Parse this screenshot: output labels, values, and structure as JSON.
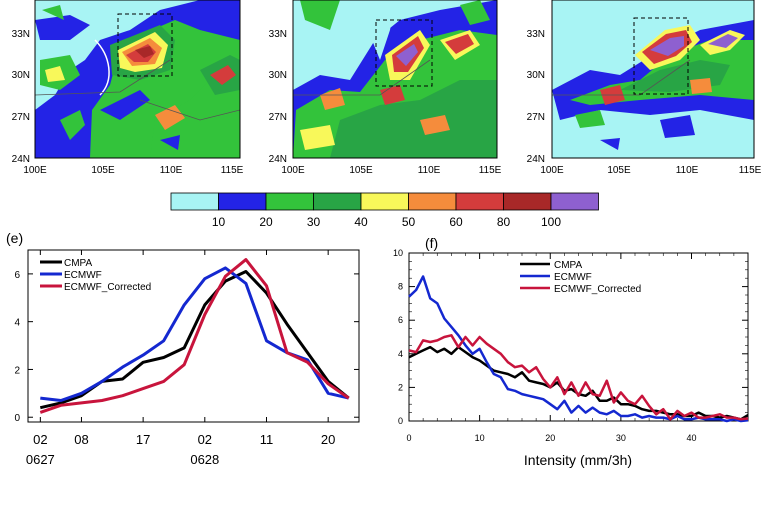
{
  "maps": [
    {
      "y_ticks": [
        "33N",
        "30N",
        "27N",
        "24N"
      ],
      "x_ticks": [
        "100E",
        "105E",
        "110E",
        "115E"
      ]
    },
    {
      "y_ticks": [
        "33N",
        "30N",
        "27N",
        "24N"
      ],
      "x_ticks": [
        "100E",
        "105E",
        "110E",
        "115E"
      ]
    },
    {
      "y_ticks": [
        "33N",
        "30N",
        "27N",
        "24N"
      ],
      "x_ticks": [
        "100E",
        "105E",
        "110E",
        "115E"
      ]
    }
  ],
  "colorbar": {
    "labels": [
      "10",
      "20",
      "30",
      "40",
      "50",
      "60",
      "80",
      "100"
    ],
    "colors": [
      "#a8f4f4",
      "#2323e6",
      "#33c33b",
      "#28a545",
      "#f8f85a",
      "#f58c3c",
      "#d43c3c",
      "#a82828",
      "#8e60d0"
    ]
  },
  "colors": {
    "cmpa": "#000000",
    "ecmwf": "#1428d0",
    "corrected": "#c8143c"
  },
  "chart_data": [
    {
      "type": "line",
      "panel_label": "(e)",
      "x_tick_labels": [
        "02",
        "08",
        "17",
        "02",
        "11",
        "20"
      ],
      "x_tick_positions": [
        0,
        2,
        5,
        8,
        11,
        14
      ],
      "date_labels": [
        "0627",
        "0628"
      ],
      "date_positions": [
        0,
        8
      ],
      "xlim": [
        -0.6,
        15.5
      ],
      "ylim": [
        -0.2,
        7
      ],
      "y_ticks": [
        0,
        2,
        4,
        6
      ],
      "x": [
        0,
        1,
        2,
        3,
        4,
        5,
        6,
        7,
        8,
        9,
        10,
        11,
        12,
        13,
        14,
        15
      ],
      "series": [
        {
          "name": "CMPA",
          "color": "#000000",
          "values": [
            0.4,
            0.6,
            0.9,
            1.5,
            1.6,
            2.3,
            2.5,
            2.9,
            4.7,
            5.7,
            6.1,
            5.2,
            3.9,
            2.7,
            1.5,
            0.8
          ]
        },
        {
          "name": "ECMWF",
          "color": "#1428d0",
          "values": [
            0.8,
            0.7,
            1.0,
            1.5,
            2.1,
            2.6,
            3.2,
            4.7,
            5.8,
            6.25,
            5.6,
            3.2,
            2.7,
            2.4,
            1.0,
            0.8
          ]
        },
        {
          "name": "ECMWF_Corrected",
          "color": "#c8143c",
          "values": [
            0.2,
            0.5,
            0.6,
            0.7,
            0.9,
            1.2,
            1.5,
            2.2,
            4.3,
            5.9,
            6.6,
            5.5,
            2.7,
            2.3,
            1.4,
            0.8
          ]
        }
      ],
      "legend_position": "top-left"
    },
    {
      "type": "line",
      "panel_label": "(f)",
      "xlabel": "Intensity (mm/3h)",
      "xlim": [
        0,
        48
      ],
      "ylim": [
        0,
        10
      ],
      "x_ticks": [
        0,
        10,
        20,
        30,
        40
      ],
      "y_ticks": [
        0,
        2,
        4,
        6,
        8,
        10
      ],
      "x": [
        0,
        1,
        2,
        3,
        4,
        5,
        6,
        7,
        8,
        9,
        10,
        11,
        12,
        13,
        14,
        15,
        16,
        17,
        18,
        19,
        20,
        21,
        22,
        23,
        24,
        25,
        26,
        27,
        28,
        29,
        30,
        31,
        32,
        33,
        34,
        35,
        36,
        37,
        38,
        39,
        40,
        41,
        42,
        43,
        44,
        45,
        46,
        47,
        48
      ],
      "series": [
        {
          "name": "CMPA",
          "color": "#000000",
          "values": [
            3.8,
            4.0,
            4.2,
            4.4,
            4.1,
            4.3,
            4.0,
            4.4,
            4.1,
            3.8,
            3.6,
            3.3,
            3.0,
            2.9,
            2.8,
            2.6,
            2.9,
            2.4,
            2.3,
            2.2,
            2.0,
            2.3,
            1.8,
            1.9,
            1.6,
            1.5,
            1.8,
            1.2,
            1.2,
            1.4,
            1.0,
            1.0,
            0.9,
            0.7,
            0.6,
            0.6,
            0.5,
            0.4,
            0.4,
            0.3,
            0.3,
            0.5,
            0.3,
            0.3,
            0.2,
            0.3,
            0.2,
            0.1,
            0.35
          ]
        },
        {
          "name": "ECMWF",
          "color": "#1428d0",
          "values": [
            7.4,
            7.8,
            8.6,
            7.3,
            7.0,
            6.1,
            5.6,
            5.1,
            4.5,
            4.0,
            4.3,
            3.5,
            2.8,
            2.6,
            1.9,
            1.8,
            1.6,
            1.5,
            1.4,
            1.3,
            1.0,
            0.7,
            1.2,
            0.5,
            0.9,
            0.5,
            0.8,
            0.5,
            0.4,
            0.6,
            0.3,
            0.3,
            0.4,
            0.2,
            0.3,
            0.2,
            0.2,
            0.1,
            0.3,
            0.1,
            0.1,
            0.2,
            0.1,
            0.1,
            0.1,
            0.0,
            0.1,
            0.0,
            0.05
          ]
        },
        {
          "name": "ECMWF_Corrected",
          "color": "#c8143c",
          "values": [
            4.2,
            4.1,
            4.8,
            4.7,
            4.8,
            5.0,
            5.1,
            4.4,
            5.0,
            4.5,
            5.0,
            4.6,
            4.3,
            4.0,
            3.5,
            3.2,
            3.3,
            2.9,
            3.2,
            2.5,
            2.0,
            2.6,
            1.6,
            2.3,
            1.5,
            2.3,
            1.6,
            1.5,
            2.4,
            1.1,
            1.7,
            1.2,
            1.0,
            1.5,
            0.9,
            0.4,
            0.7,
            0.1,
            0.6,
            0.3,
            0.5,
            0.2,
            0.2,
            0.3,
            0.4,
            0.2,
            0.2,
            0.1,
            0.15
          ]
        }
      ],
      "legend_position": "top-center"
    }
  ]
}
